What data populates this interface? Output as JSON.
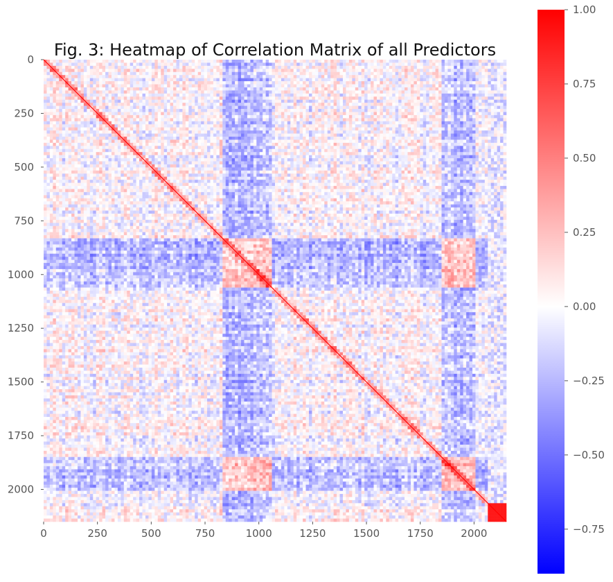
{
  "chart_data": {
    "type": "heatmap",
    "title": "Fig. 3: Heatmap of Correlation Matrix of all Predictors",
    "xlabel": "",
    "ylabel": "",
    "matrix_size": 2150,
    "xlim": [
      0,
      2150
    ],
    "ylim": [
      2150,
      0
    ],
    "x_ticks": [
      0,
      250,
      500,
      750,
      1000,
      1250,
      1500,
      1750,
      2000
    ],
    "y_ticks": [
      0,
      250,
      500,
      750,
      1000,
      1250,
      1500,
      1750,
      2000
    ],
    "x_tick_labels": [
      "0",
      "250",
      "500",
      "750",
      "1000",
      "1250",
      "1500",
      "1750",
      "2000"
    ],
    "y_tick_labels": [
      "0",
      "250",
      "500",
      "750",
      "1000",
      "1250",
      "1500",
      "1750",
      "2000"
    ],
    "colormap": "bwr",
    "colors": {
      "negative": "#0000ff",
      "zero": "#ffffff",
      "positive": "#ff0000"
    },
    "value_range": [
      -0.9,
      1.0
    ],
    "colorbar": {
      "ticks": [
        1.0,
        0.75,
        0.5,
        0.25,
        0.0,
        -0.25,
        -0.5,
        -0.75
      ],
      "tick_labels": [
        "1.00",
        "0.75",
        "0.50",
        "0.25",
        "0.00",
        "−0.25",
        "−0.50",
        "−0.75"
      ],
      "placement": "right"
    },
    "diagonal_value": 1.0,
    "grid": false
  }
}
